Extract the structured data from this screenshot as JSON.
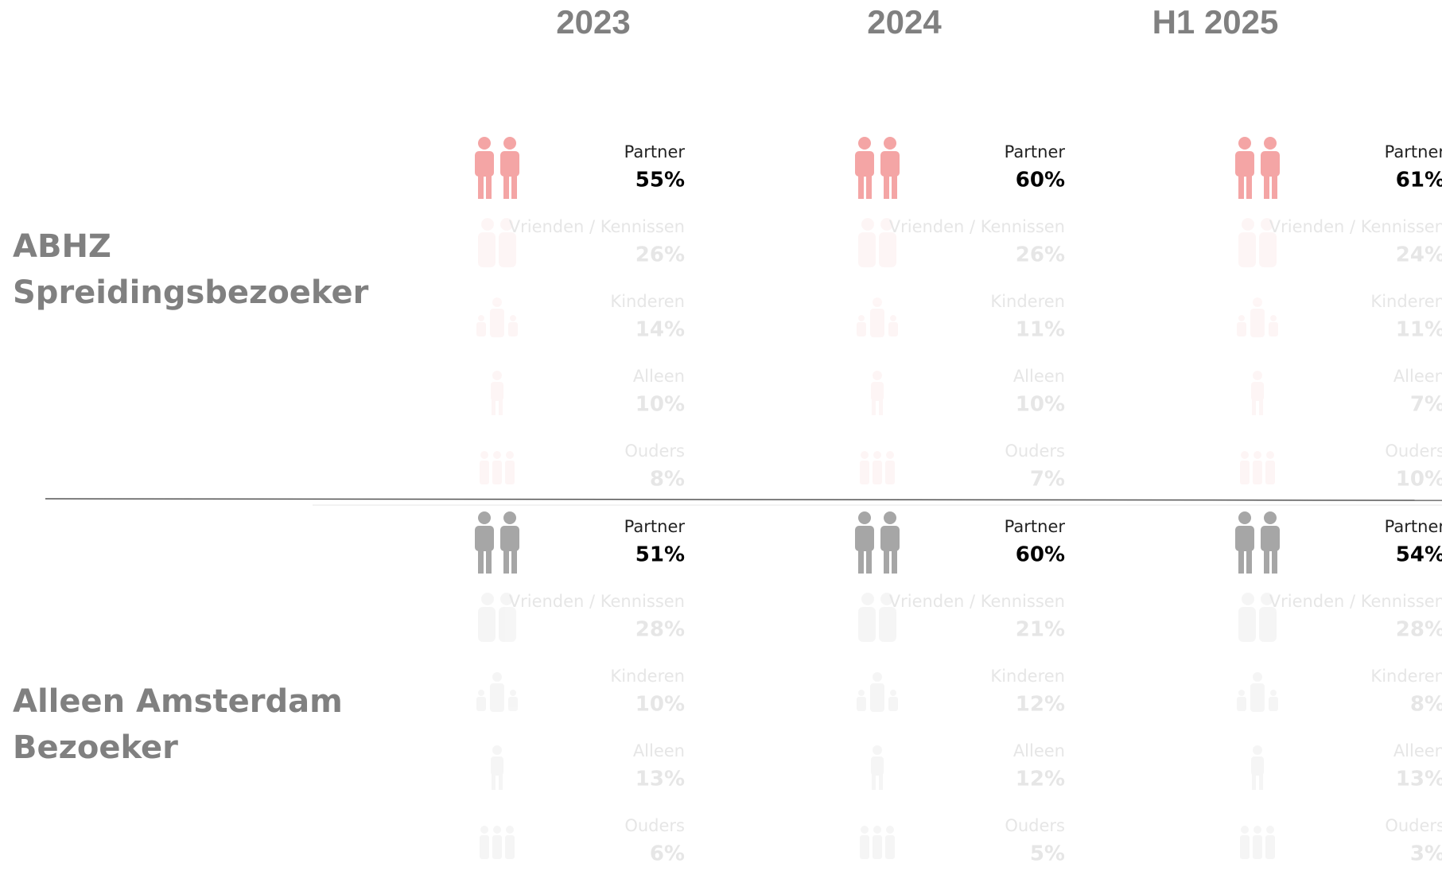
{
  "columns": [
    "2023",
    "2024",
    "H1 2025"
  ],
  "groups": [
    {
      "label_lines": [
        "ABHZ",
        "Spreidingsbezoeker"
      ],
      "cells": [
        {
          "values": [
            "55%",
            "26%",
            "14%",
            "10%",
            "8%"
          ]
        },
        {
          "values": [
            "60%",
            "26%",
            "11%",
            "10%",
            "7%"
          ]
        },
        {
          "values": [
            "61%",
            "24%",
            "11%",
            "7%",
            "10%"
          ]
        }
      ]
    },
    {
      "label_lines": [
        "Alleen Amsterdam",
        "Bezoeker"
      ],
      "cells": [
        {
          "values": [
            "51%",
            "28%",
            "10%",
            "13%",
            "6%"
          ]
        },
        {
          "values": [
            "60%",
            "21%",
            "12%",
            "12%",
            "5%"
          ]
        },
        {
          "values": [
            "54%",
            "28%",
            "8%",
            "13%",
            "3%"
          ]
        }
      ]
    }
  ],
  "categories": [
    "Partner",
    "Vrienden / Kennissen",
    "Kinderen",
    "Alleen",
    "Ouders"
  ]
}
